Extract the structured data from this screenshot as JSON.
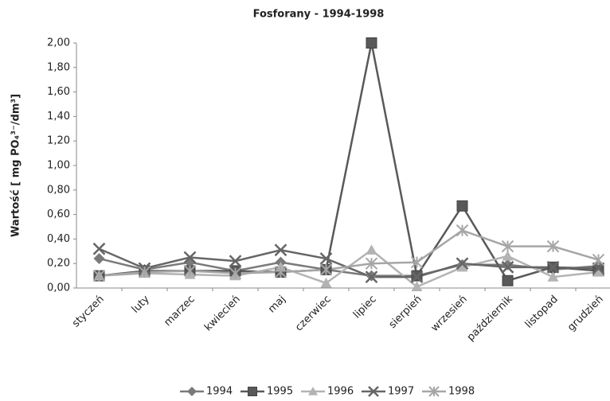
{
  "chart_data": {
    "type": "line",
    "title": "Fosforany - 1994-1998",
    "y_label": "Wartość [ mg PO₄³⁻/dm³]",
    "categories": [
      "styczeń",
      "luty",
      "marzec",
      "kwiecień",
      "maj",
      "czerwiec",
      "lipiec",
      "sierpień",
      "wrzesień",
      "październik",
      "listopad",
      "grudzień"
    ],
    "series": [
      {
        "name": "1994",
        "color": "#7a7a7a",
        "marker": "diamond",
        "values": [
          0.24,
          0.15,
          0.21,
          0.14,
          0.21,
          0.15,
          0.1,
          0.1,
          0.19,
          0.19,
          0.15,
          0.18
        ]
      },
      {
        "name": "1995",
        "color": "#595959",
        "marker": "square",
        "values": [
          0.1,
          0.14,
          0.14,
          0.14,
          0.13,
          0.15,
          2.0,
          0.1,
          0.67,
          0.06,
          0.17,
          0.14
        ]
      },
      {
        "name": "1996",
        "color": "#b3b3b3",
        "marker": "triangle",
        "values": [
          0.1,
          0.12,
          0.11,
          0.1,
          0.17,
          0.04,
          0.31,
          0.01,
          0.17,
          0.26,
          0.09,
          0.13
        ]
      },
      {
        "name": "1997",
        "color": "#666666",
        "marker": "x",
        "values": [
          0.32,
          0.16,
          0.25,
          0.22,
          0.31,
          0.24,
          0.09,
          0.09,
          0.2,
          0.17,
          0.17,
          0.16
        ]
      },
      {
        "name": "1998",
        "color": "#a6a6a6",
        "marker": "star",
        "values": [
          0.1,
          0.13,
          0.14,
          0.12,
          0.13,
          0.15,
          0.2,
          0.21,
          0.47,
          0.34,
          0.34,
          0.23
        ]
      }
    ],
    "ylim": [
      0,
      2
    ],
    "yticks": [
      {
        "value": 0,
        "label": "0,00"
      },
      {
        "value": 0.2,
        "label": "0,20"
      },
      {
        "value": 0.4,
        "label": "0,40"
      },
      {
        "value": 0.6,
        "label": "0,60"
      },
      {
        "value": 0.8,
        "label": "0,80"
      },
      {
        "value": 1,
        "label": "1,00"
      },
      {
        "value": 1.2,
        "label": "1,20"
      },
      {
        "value": 1.4,
        "label": "1,40"
      },
      {
        "value": 1.6,
        "label": "1,60"
      },
      {
        "value": 1.8,
        "label": "1,80"
      },
      {
        "value": 2,
        "label": "2,00"
      }
    ],
    "grid": false,
    "legend": "bottom"
  }
}
